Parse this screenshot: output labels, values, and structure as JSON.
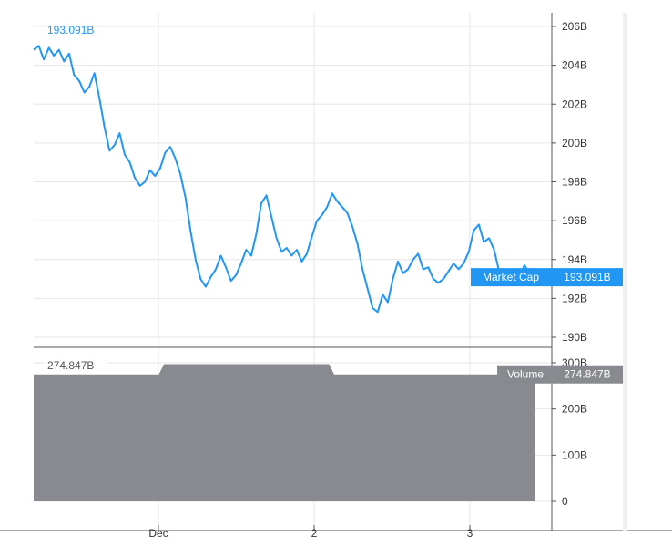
{
  "chart_data": [
    {
      "type": "line",
      "pane": "price",
      "series": [
        {
          "name": "Market Cap",
          "color": "#2196F3",
          "values": [
            204.8,
            205.0,
            204.3,
            204.9,
            204.5,
            204.8,
            204.2,
            204.6,
            203.5,
            203.2,
            202.6,
            202.9,
            203.6,
            202.3,
            200.8,
            199.6,
            199.9,
            200.5,
            199.4,
            199.0,
            198.2,
            197.8,
            198.0,
            198.6,
            198.3,
            198.7,
            199.5,
            199.8,
            199.2,
            198.4,
            197.2,
            195.5,
            194.0,
            193.0,
            192.6,
            193.1,
            193.5,
            194.2,
            193.6,
            192.9,
            193.2,
            193.8,
            194.5,
            194.2,
            195.3,
            196.9,
            197.3,
            196.2,
            195.1,
            194.4,
            194.6,
            194.2,
            194.5,
            193.9,
            194.3,
            195.2,
            196.0,
            196.3,
            196.7,
            197.4,
            197.0,
            196.7,
            196.4,
            195.7,
            194.8,
            193.5,
            192.5,
            191.5,
            191.3,
            192.2,
            191.8,
            193.0,
            193.9,
            193.3,
            193.5,
            194.0,
            194.3,
            193.5,
            193.6,
            193.0,
            192.8,
            193.0,
            193.4,
            193.8,
            193.5,
            193.8,
            194.4,
            195.5,
            195.8,
            194.9,
            195.1,
            194.5,
            193.4,
            193.2,
            193.3,
            193.4,
            193.1,
            193.7,
            193.3,
            193.091
          ]
        }
      ],
      "yticks": [
        "206B",
        "204B",
        "202B",
        "200B",
        "198B",
        "196B",
        "194B",
        "192B",
        "190B"
      ],
      "ylim": [
        190,
        206
      ],
      "last_value_label": "193.091B",
      "badge_label": "Market Cap",
      "badge_value": "193.091B"
    },
    {
      "type": "area",
      "pane": "volume",
      "series": [
        {
          "name": "Volume",
          "color": "#888a8f",
          "values": [
            274.847,
            274.847,
            274.847,
            274.847,
            274.847,
            274.847,
            274.847,
            274.847,
            274.847,
            274.847,
            274.847,
            274.847,
            274.847,
            274.847,
            274.847,
            274.847,
            274.847,
            274.847,
            274.847,
            274.847,
            274.847,
            274.847,
            274.847,
            274.847,
            274.847,
            274.847,
            297,
            297,
            297,
            297,
            297,
            297,
            297,
            297,
            297,
            297,
            297,
            297,
            297,
            297,
            297,
            297,
            297,
            297,
            297,
            297,
            297,
            297,
            297,
            297,
            297,
            297,
            297,
            297,
            297,
            297,
            297,
            297,
            297,
            297,
            274.847,
            274.847,
            274.847,
            274.847,
            274.847,
            274.847,
            274.847,
            274.847,
            274.847,
            274.847,
            274.847,
            274.847,
            274.847,
            274.847,
            274.847,
            274.847,
            274.847,
            274.847,
            274.847,
            274.847,
            274.847,
            274.847,
            274.847,
            274.847,
            274.847,
            274.847,
            274.847,
            274.847,
            274.847,
            274.847,
            274.847,
            274.847,
            274.847,
            274.847,
            274.847,
            274.847,
            274.847,
            274.847,
            274.847,
            274.847,
            274.847
          ]
        }
      ],
      "yticks": [
        "300B",
        "200B",
        "100B",
        "0"
      ],
      "ylim": [
        0,
        300
      ],
      "last_value_label": "274.847B",
      "badge_label": "Volume",
      "badge_value": "274.847B"
    }
  ],
  "x_axis": {
    "tick_labels": [
      "Dec",
      "2",
      "3"
    ]
  },
  "colors": {
    "line": "#2196F3",
    "volume": "#888a8f",
    "volume_badge": "#888a8f",
    "grid": "#e6e6e6",
    "axis": "#555555"
  }
}
